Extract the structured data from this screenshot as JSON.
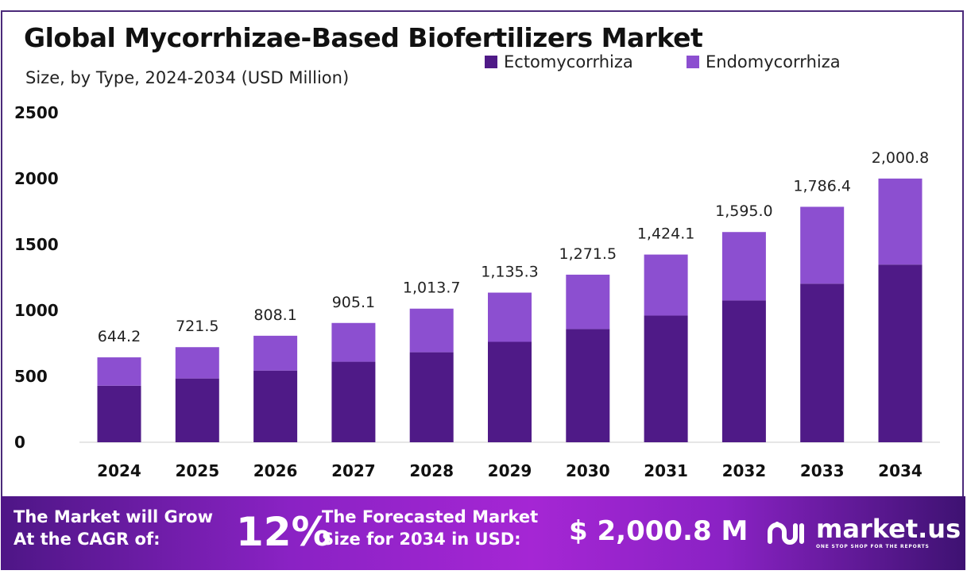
{
  "chart_data": {
    "type": "bar",
    "stacked": true,
    "title": "Global Mycorrhizae-Based Biofertilizers Market",
    "subtitle": "Size, by Type, 2024-2034 (USD Million)",
    "categories": [
      "2024",
      "2025",
      "2026",
      "2027",
      "2028",
      "2029",
      "2030",
      "2031",
      "2032",
      "2033",
      "2034"
    ],
    "series": [
      {
        "name": "Ectomycorrhiza",
        "color": "#4f1a87",
        "values": [
          429,
          484,
          544,
          611,
          683,
          762,
          859,
          961,
          1076,
          1203,
          1348
        ]
      },
      {
        "name": "Endomycorrhiza",
        "color": "#8c4fd0",
        "values": [
          215.2,
          237.5,
          264.1,
          294.1,
          330.7,
          373.3,
          412.5,
          463.1,
          519.0,
          583.4,
          652.8
        ]
      }
    ],
    "totals": [
      644.2,
      721.5,
      808.1,
      905.1,
      1013.7,
      1135.3,
      1271.5,
      1424.1,
      1595.0,
      1786.4,
      2000.8
    ],
    "total_labels": [
      "644.2",
      "721.5",
      "808.1",
      "905.1",
      "1,013.7",
      "1,135.3",
      "1,271.5",
      "1,424.1",
      "1,595.0",
      "1,786.4",
      "2,000.8"
    ],
    "yticks": [
      "0",
      "500",
      "1000",
      "1500",
      "2000",
      "2500"
    ],
    "ylim": [
      0,
      2500
    ],
    "grid": false,
    "legend": "top-right"
  },
  "footer": {
    "cagr_label_1": "The Market will Grow",
    "cagr_label_2": "At the CAGR of:",
    "cagr_value": "12%",
    "forecast_label_1": "The Forecasted Market",
    "forecast_label_2": "Size for 2034 in USD:",
    "forecast_value": "$ 2,000.8 M",
    "logo_name": "market.us",
    "logo_tagline": "ONE STOP SHOP FOR THE REPORTS"
  }
}
